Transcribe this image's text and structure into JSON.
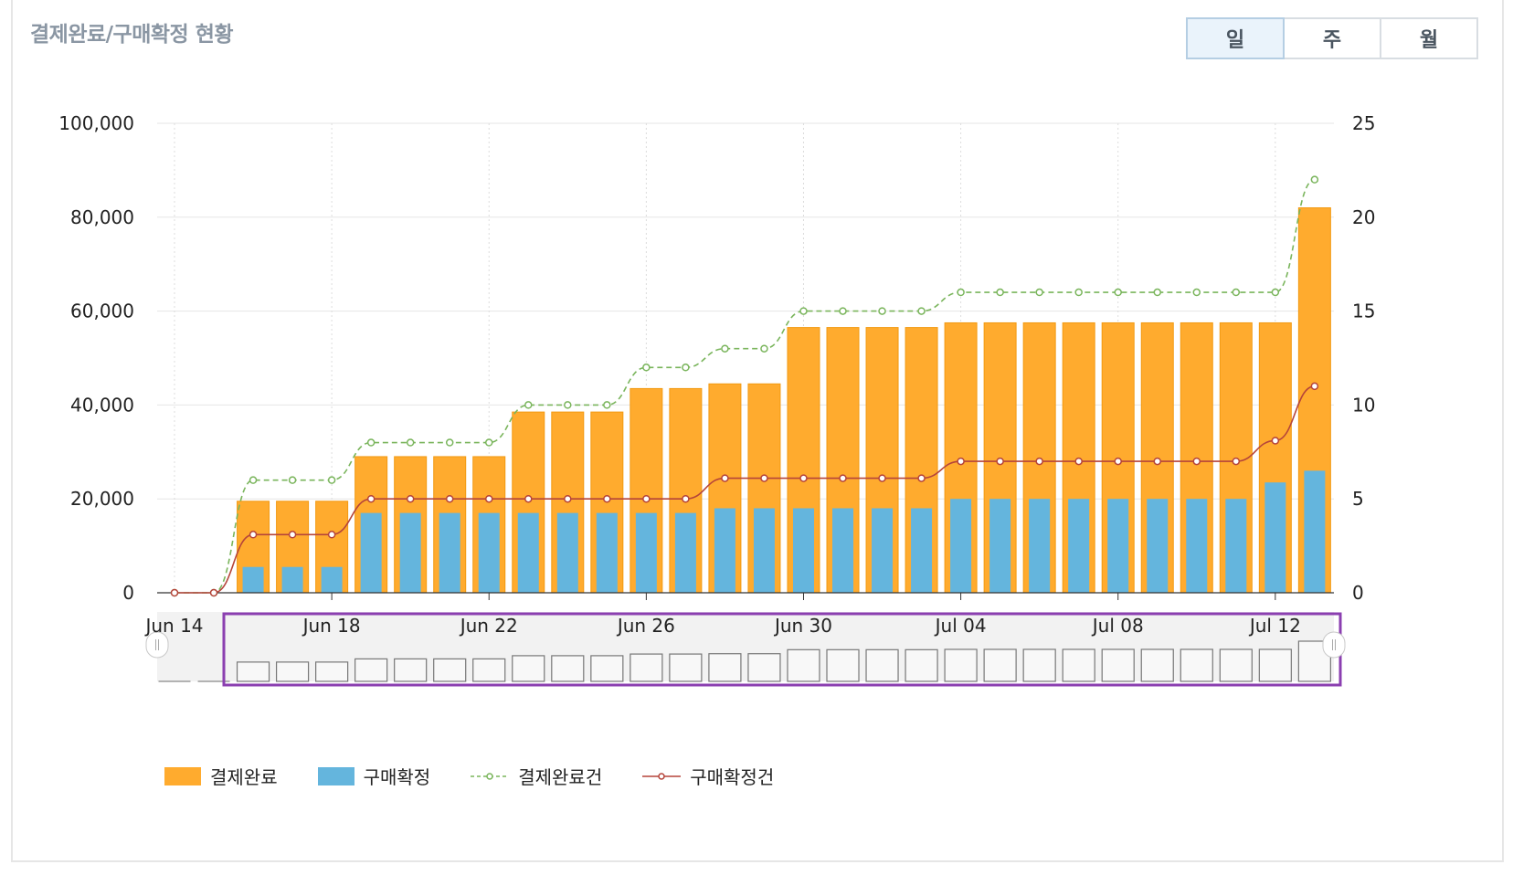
{
  "header": {
    "title": "결제완료/구매확정 현황"
  },
  "period_tabs": [
    {
      "label": "일",
      "active": true
    },
    {
      "label": "주",
      "active": false
    },
    {
      "label": "월",
      "active": false
    }
  ],
  "colors": {
    "payment_bar": "#ffab2e",
    "confirm_bar": "#64b5dd",
    "payment_count_line": "#7ab55c",
    "confirm_count_line": "#b5443a",
    "navigator_mask": "#8b3fb0"
  },
  "chart_data": {
    "type": "bar",
    "x_tick_labels": [
      "Jun 14",
      "Jun 18",
      "Jun 22",
      "Jun 26",
      "Jun 30",
      "Jul 04",
      "Jul 08",
      "Jul 12"
    ],
    "x": [
      "Jun 14",
      "Jun 15",
      "Jun 16",
      "Jun 17",
      "Jun 18",
      "Jun 19",
      "Jun 20",
      "Jun 21",
      "Jun 22",
      "Jun 23",
      "Jun 24",
      "Jun 25",
      "Jun 26",
      "Jun 27",
      "Jun 28",
      "Jun 29",
      "Jun 30",
      "Jul 01",
      "Jul 02",
      "Jul 03",
      "Jul 04",
      "Jul 05",
      "Jul 06",
      "Jul 07",
      "Jul 08",
      "Jul 09",
      "Jul 10",
      "Jul 11",
      "Jul 12",
      "Jul 13"
    ],
    "y_left_ticks": [
      "0",
      "20,000",
      "40,000",
      "60,000",
      "80,000",
      "100,000"
    ],
    "y_right_ticks": [
      "0",
      "5",
      "10",
      "15",
      "20",
      "25"
    ],
    "ylim_left": [
      0,
      100000
    ],
    "ylim_right": [
      0,
      25
    ],
    "grid": true,
    "legend_position": "bottom-left",
    "series": [
      {
        "name": "결제완료",
        "type": "bar",
        "axis": "left",
        "values": [
          0,
          0,
          19500,
          19500,
          19500,
          29000,
          29000,
          29000,
          29000,
          38500,
          38500,
          38500,
          43500,
          43500,
          44500,
          44500,
          56500,
          56500,
          56500,
          56500,
          57500,
          57500,
          57500,
          57500,
          57500,
          57500,
          57500,
          57500,
          57500,
          82000
        ]
      },
      {
        "name": "구매확정",
        "type": "bar",
        "axis": "left",
        "values": [
          0,
          0,
          5500,
          5500,
          5500,
          17000,
          17000,
          17000,
          17000,
          17000,
          17000,
          17000,
          17000,
          17000,
          18000,
          18000,
          18000,
          18000,
          18000,
          18000,
          20000,
          20000,
          20000,
          20000,
          20000,
          20000,
          20000,
          20000,
          23500,
          26000
        ]
      },
      {
        "name": "결제완료건",
        "type": "line",
        "axis": "right",
        "dashed": true,
        "values": [
          0,
          0,
          6,
          6,
          6,
          8,
          8,
          8,
          8,
          10,
          10,
          10,
          12,
          12,
          13,
          13,
          15,
          15,
          15,
          15,
          16,
          16,
          16,
          16,
          16,
          16,
          16,
          16,
          16,
          22
        ]
      },
      {
        "name": "구매확정건",
        "type": "line",
        "axis": "right",
        "dashed": false,
        "values": [
          0,
          0,
          3.1,
          3.1,
          3.1,
          5,
          5,
          5,
          5,
          5,
          5,
          5,
          5,
          5,
          6.1,
          6.1,
          6.1,
          6.1,
          6.1,
          6.1,
          7,
          7,
          7,
          7,
          7,
          7,
          7,
          7,
          8.1,
          11
        ]
      }
    ]
  }
}
